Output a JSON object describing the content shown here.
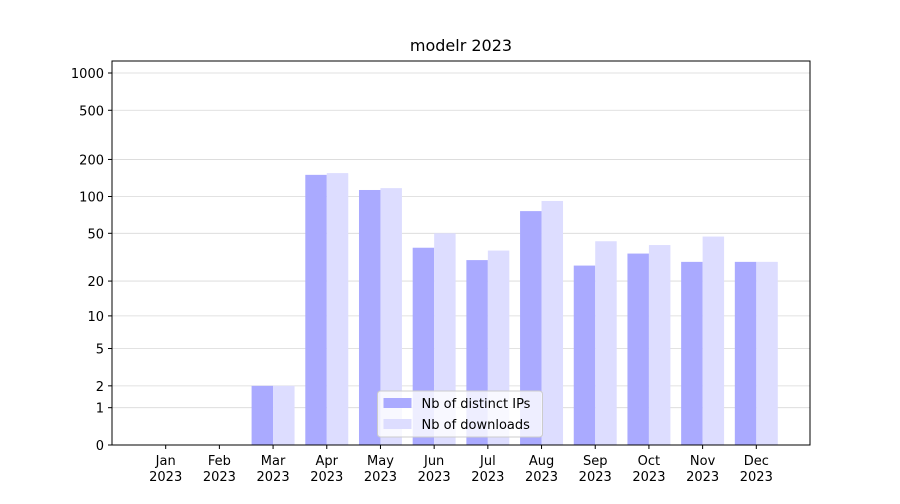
{
  "chart_data": {
    "type": "bar",
    "title": "modelr 2023",
    "categories": [
      "Jan\n2023",
      "Feb\n2023",
      "Mar\n2023",
      "Apr\n2023",
      "May\n2023",
      "Jun\n2023",
      "Jul\n2023",
      "Aug\n2023",
      "Sep\n2023",
      "Oct\n2023",
      "Nov\n2023",
      "Dec\n2023"
    ],
    "series": [
      {
        "name": "Nb of distinct IPs",
        "color": "#aaaaff",
        "values": [
          0,
          0,
          2,
          150,
          113,
          38,
          30,
          76,
          27,
          34,
          29,
          29
        ]
      },
      {
        "name": "Nb of downloads",
        "color": "#ddddff",
        "values": [
          0,
          0,
          2,
          155,
          117,
          50,
          36,
          92,
          43,
          40,
          47,
          29
        ]
      }
    ],
    "yscale": "log1p",
    "ylim": [
      0,
      1250
    ],
    "yticks": [
      0,
      1,
      2,
      5,
      10,
      20,
      50,
      100,
      200,
      500,
      1000
    ],
    "grid": true,
    "legend": "lower center"
  }
}
